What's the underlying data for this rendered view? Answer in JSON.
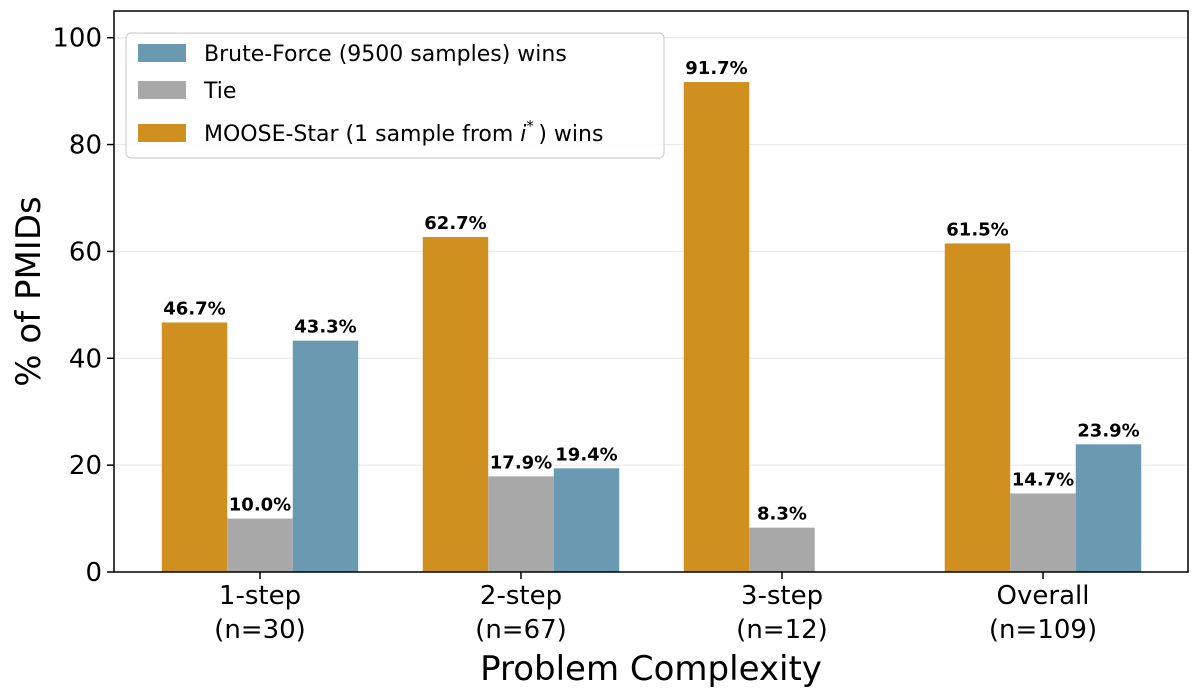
{
  "chart_data": {
    "type": "bar",
    "xlabel": "Problem Complexity",
    "ylabel": "% of PMIDs",
    "ylim": [
      0,
      105
    ],
    "yticks": [
      0,
      20,
      40,
      60,
      80,
      100
    ],
    "grid": "horizontal",
    "legend_position": "top-left",
    "categories": [
      {
        "line1": "1-step",
        "line2": "(n=30)"
      },
      {
        "line1": "2-step",
        "line2": "(n=67)"
      },
      {
        "line1": "3-step",
        "line2": "(n=12)"
      },
      {
        "line1": "Overall",
        "line2": "(n=109)"
      }
    ],
    "series": [
      {
        "name": "MOOSE-Star (1 sample from i*) wins",
        "color": "#D09020",
        "values": [
          46.7,
          62.7,
          91.7,
          61.5
        ],
        "labels": [
          "46.7%",
          "62.7%",
          "91.7%",
          "61.5%"
        ]
      },
      {
        "name": "Tie",
        "color": "#A8A8A8",
        "values": [
          10.0,
          17.9,
          8.3,
          14.7
        ],
        "labels": [
          "10.0%",
          "17.9%",
          "8.3%",
          "14.7%"
        ]
      },
      {
        "name": "Brute-Force (9500 samples) wins",
        "color": "#6A9AB2",
        "values": [
          43.3,
          19.4,
          0,
          23.9
        ],
        "labels": [
          "43.3%",
          "19.4%",
          "",
          "23.9%"
        ]
      }
    ],
    "legend": [
      {
        "prefix": "Brute-Force (9500 samples) wins",
        "italic": "",
        "sup": "",
        "suffix": "",
        "color": "#6A9AB2"
      },
      {
        "prefix": "Tie",
        "italic": "",
        "sup": "",
        "suffix": "",
        "color": "#A8A8A8"
      },
      {
        "prefix": "MOOSE-Star (1 sample from ",
        "italic": "i",
        "sup": "*",
        "suffix": ") wins",
        "color": "#D09020"
      }
    ]
  }
}
